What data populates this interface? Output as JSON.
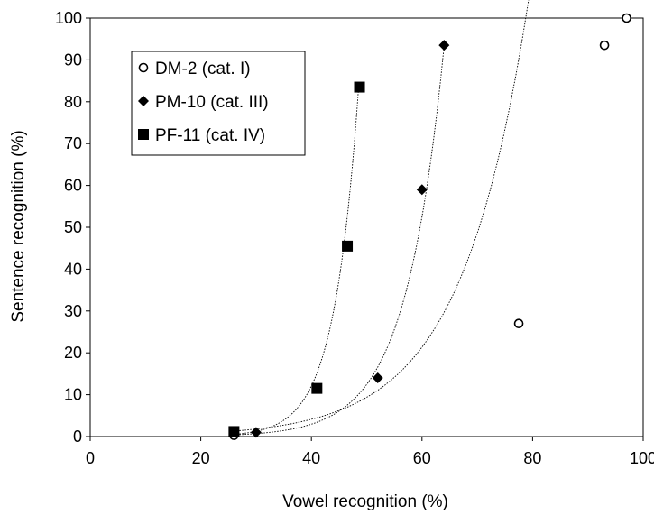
{
  "chart_data": {
    "type": "scatter",
    "xlabel": "Vowel recognition (%)",
    "ylabel": "Sentence recognition (%)",
    "xlim": [
      0,
      100
    ],
    "ylim": [
      0,
      100
    ],
    "xticks": [
      0,
      20,
      40,
      60,
      80,
      100
    ],
    "yticks": [
      0,
      10,
      20,
      30,
      40,
      50,
      60,
      70,
      80,
      90,
      100
    ],
    "grid": false,
    "legend_position": "top-left",
    "series": [
      {
        "name": "DM-2 (cat. I)",
        "marker": "open-circle",
        "points": [
          {
            "x": 26,
            "y": 0.3
          },
          {
            "x": 77.5,
            "y": 27
          },
          {
            "x": 93,
            "y": 93.5
          },
          {
            "x": 97,
            "y": 100
          }
        ],
        "trend": {
          "a": 0.153,
          "b": 0.0823,
          "x_start": 26,
          "x_end": 94
        }
      },
      {
        "name": "PM-10 (cat. III)",
        "marker": "filled-diamond",
        "points": [
          {
            "x": 30,
            "y": 1
          },
          {
            "x": 52,
            "y": 14
          },
          {
            "x": 60,
            "y": 59
          },
          {
            "x": 64,
            "y": 93.5
          }
        ],
        "trend": {
          "a": 0.00934,
          "b": 0.1439,
          "x_start": 26,
          "x_end": 64
        }
      },
      {
        "name": "PF-11 (cat. IV)",
        "marker": "filled-square",
        "points": [
          {
            "x": 26,
            "y": 1.2
          },
          {
            "x": 41,
            "y": 11.5
          },
          {
            "x": 46.5,
            "y": 45.5
          },
          {
            "x": 48.7,
            "y": 83.5
          }
        ],
        "trend": {
          "a": 0.00141,
          "b": 0.2264,
          "x_start": 26,
          "x_end": 48.5
        }
      }
    ]
  }
}
